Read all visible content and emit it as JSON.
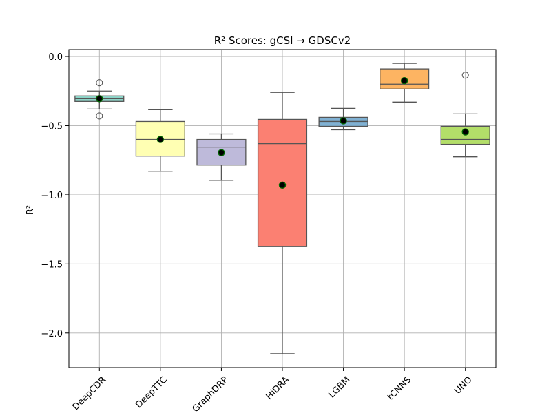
{
  "chart_data": {
    "type": "box",
    "title": "R² Scores: gCSI → GDSCv2",
    "xlabel": "",
    "ylabel": "R²",
    "ylim": [
      -2.25,
      0.05
    ],
    "yticks": [
      0.0,
      -0.5,
      -1.0,
      -1.5,
      -2.0
    ],
    "ytick_labels": [
      "0.0",
      "−0.5",
      "−1.0",
      "−1.5",
      "−2.0"
    ],
    "grid": true,
    "categories": [
      "DeepCDR",
      "DeepTTC",
      "GraphDRP",
      "HiDRA",
      "LGBM",
      "tCNNS",
      "UNO"
    ],
    "boxes": [
      {
        "name": "DeepCDR",
        "color": "#8dd3c7",
        "whisker_low": -0.38,
        "q1": -0.325,
        "median": -0.305,
        "q3": -0.285,
        "whisker_high": -0.25,
        "mean": -0.305,
        "outliers": [
          -0.19,
          -0.43
        ]
      },
      {
        "name": "DeepTTC",
        "color": "#ffffb3",
        "whisker_low": -0.83,
        "q1": -0.72,
        "median": -0.6,
        "q3": -0.47,
        "whisker_high": -0.385,
        "mean": -0.6,
        "outliers": []
      },
      {
        "name": "GraphDRP",
        "color": "#bebada",
        "whisker_low": -0.895,
        "q1": -0.785,
        "median": -0.655,
        "q3": -0.6,
        "whisker_high": -0.56,
        "mean": -0.695,
        "outliers": []
      },
      {
        "name": "HiDRA",
        "color": "#fb8072",
        "whisker_low": -2.15,
        "q1": -1.375,
        "median": -0.63,
        "q3": -0.455,
        "whisker_high": -0.26,
        "mean": -0.93,
        "outliers": []
      },
      {
        "name": "LGBM",
        "color": "#80b1d3",
        "whisker_low": -0.53,
        "q1": -0.505,
        "median": -0.47,
        "q3": -0.44,
        "whisker_high": -0.375,
        "mean": -0.465,
        "outliers": []
      },
      {
        "name": "tCNNS",
        "color": "#fdb462",
        "whisker_low": -0.33,
        "q1": -0.235,
        "median": -0.2,
        "q3": -0.09,
        "whisker_high": -0.05,
        "mean": -0.175,
        "outliers": []
      },
      {
        "name": "UNO",
        "color": "#b3de69",
        "whisker_low": -0.725,
        "q1": -0.635,
        "median": -0.6,
        "q3": -0.505,
        "whisker_high": -0.415,
        "mean": -0.545,
        "outliers": [
          -0.135
        ]
      }
    ],
    "mean_marker_color": "#006400",
    "mean_marker_fill": "#000000"
  }
}
